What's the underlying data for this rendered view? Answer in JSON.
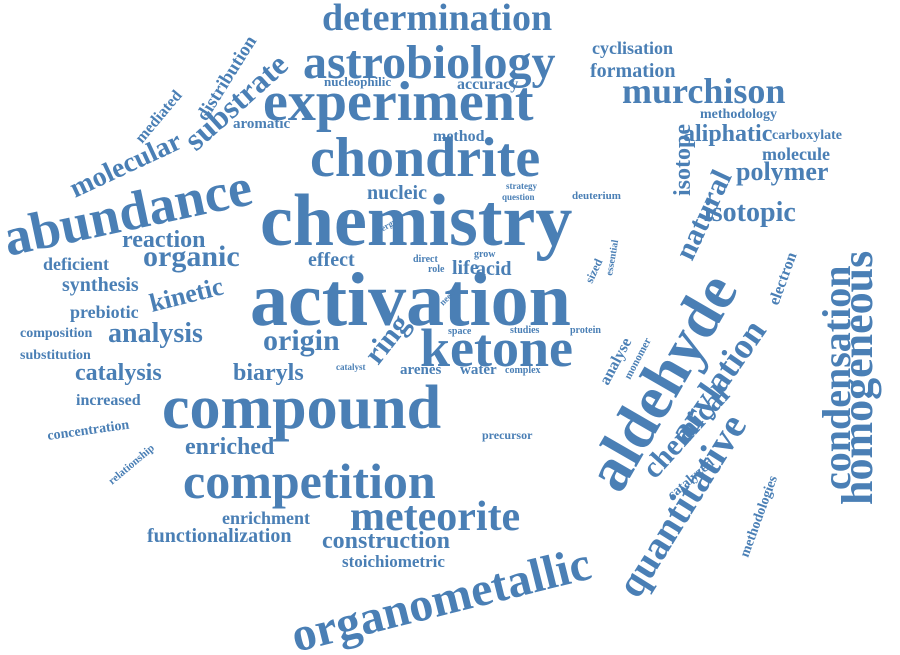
{
  "color": "#4a7fb5",
  "words": [
    "determination",
    "astrobiology",
    "cyclisation",
    "formation",
    "murchison",
    "experiment",
    "nucleophilic",
    "accuracy",
    "methodology",
    "distribution",
    "substrate",
    "mediated",
    "molecular",
    "aromatic",
    "method",
    "aliphatic",
    "carboxylate",
    "abundance",
    "chondrite",
    "isotope",
    "molecule",
    "homogeneous",
    "polymer",
    "nucleic",
    "strategy",
    "question",
    "deuterium",
    "natural",
    "chemistry",
    "isotopic",
    "reaction",
    "energy",
    "condensation",
    "deficient",
    "organic",
    "effect",
    "direct",
    "role",
    "grow",
    "life",
    "acid",
    "sized",
    "essential",
    "electron",
    "synthesis",
    "kinetic",
    "activation",
    "aldehyde",
    "prebiotic",
    "additive",
    "need",
    "composition",
    "analysis",
    "origin",
    "space",
    "studies",
    "protein",
    "monomer",
    "arylation",
    "ring",
    "ketone",
    "analyse",
    "substitution",
    "catalyst",
    "arenes",
    "water",
    "complex",
    "catalysis",
    "biaryls",
    "chemical",
    "increased",
    "compound",
    "precursor",
    "quantitative",
    "concentration",
    "relationship",
    "enriched",
    "competition",
    "catalyzed",
    "methodologies",
    "meteorite",
    "enrichment",
    "functionalization",
    "construction",
    "stoichiometric",
    "organometallic"
  ]
}
